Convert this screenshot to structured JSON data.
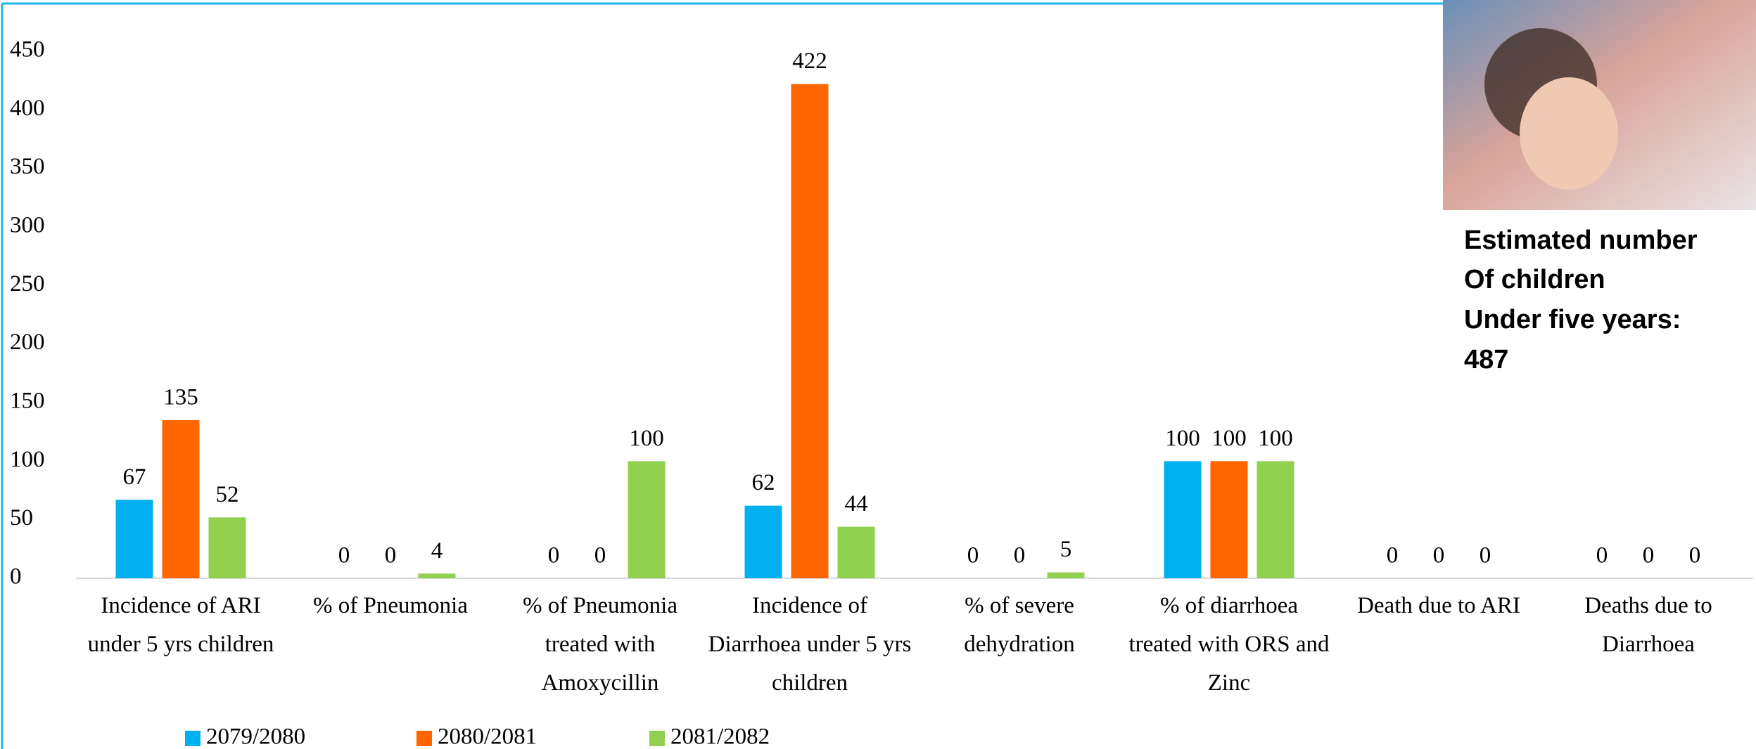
{
  "chart_data": {
    "type": "bar",
    "categories": [
      "Incidence of ARI under 5 yrs children",
      "% of Pneumonia",
      "% of Pneumonia treated with Amoxycillin",
      "Incidence of Diarrhoea under 5 yrs children",
      "% of severe dehydration",
      "% of diarrhoea treated with ORS and Zinc",
      "Death due to ARI",
      "Deaths due to Diarrhoea"
    ],
    "series": [
      {
        "name": "2079/2080",
        "color": "#00b0f0",
        "values": [
          67,
          0,
          0,
          62,
          0,
          100,
          0,
          0
        ]
      },
      {
        "name": "2080/2081",
        "color": "#ff6600",
        "values": [
          135,
          0,
          0,
          422,
          0,
          100,
          0,
          0
        ]
      },
      {
        "name": "2081/2082",
        "color": "#92d050",
        "values": [
          52,
          4,
          100,
          44,
          5,
          100,
          0,
          0
        ]
      }
    ],
    "ylim": [
      0,
      450
    ],
    "yticks": [
      0,
      50,
      100,
      150,
      200,
      250,
      300,
      350,
      400,
      450
    ],
    "grid": false,
    "data_labels": true,
    "legend": "bottom",
    "annotation": [
      "Estimated number",
      "Of children",
      "Under five years:",
      "487"
    ]
  }
}
